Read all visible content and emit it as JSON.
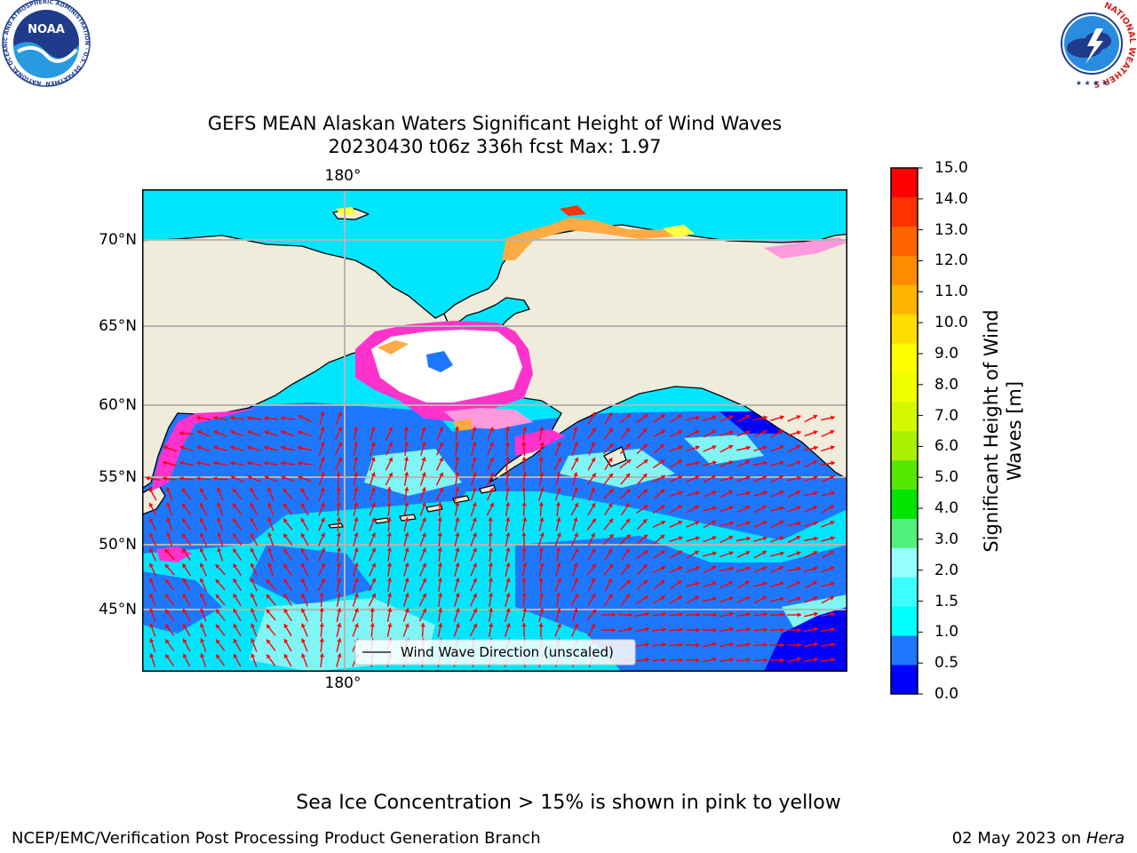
{
  "header": {
    "noaa_logo_text": "NOAA",
    "noaa_ring_text": "NATIONAL OCEANIC AND ATMOSPHERIC ADMINISTRATION · U.S. DEPARTMENT OF COMMERCE",
    "nws_ring_text": "NATIONAL WEATHER SERVICE"
  },
  "map": {
    "title_line1": "GEFS MEAN Alaskan Waters Significant Height of Wind Waves",
    "title_line2": "20230430 t06z 336h fcst   Max: 1.97",
    "lat_labels": [
      "70°N",
      "65°N",
      "60°N",
      "55°N",
      "50°N",
      "45°N"
    ],
    "lon_label_top": "180°",
    "lon_label_bottom": "180°",
    "legend_label": "Wind Wave Direction (unscaled)",
    "colors": {
      "land": "#efecdc",
      "ocean_low": "#1e78ff",
      "ocean_mid": "#00e6ff",
      "ocean_light": "#7ff5f5",
      "ocean_deep": "#0000ff",
      "ice_pink": "#ff33cc",
      "ice_light": "#ff99dd",
      "ice_orange": "#ffaa44",
      "ice_yellow": "#ffff44",
      "arrow": "#ff0000",
      "grid": "#b4b4b4"
    }
  },
  "colorbar": {
    "title": "Significant Height of Wind Waves [m]",
    "tick_labels": [
      "15.0",
      "14.0",
      "13.0",
      "12.0",
      "11.0",
      "10.0",
      "9.0",
      "8.0",
      "7.0",
      "6.0",
      "5.0",
      "4.0",
      "3.0",
      "2.0",
      "1.5",
      "1.0",
      "0.5",
      "0.0"
    ],
    "colors_bottom_to_top": [
      "#0000ff",
      "#1e78ff",
      "#00ffff",
      "#3cffff",
      "#96ffff",
      "#50f07c",
      "#00e400",
      "#55e800",
      "#aaf000",
      "#d4f800",
      "#eeff00",
      "#ffff00",
      "#ffdd00",
      "#ffb400",
      "#ff8c00",
      "#ff6400",
      "#ff3200",
      "#ff0000"
    ]
  },
  "footer": {
    "note": "Sea Ice Concentration > 15% is shown in pink to yellow",
    "credit": "NCEP/EMC/Verification Post Processing Product Generation Branch",
    "date": "02 May 2023 on",
    "machine": "Hera"
  }
}
